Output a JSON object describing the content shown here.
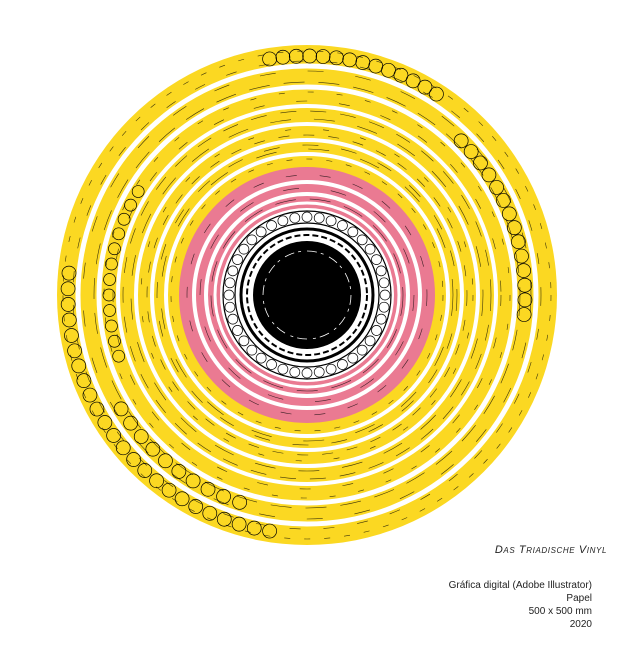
{
  "artwork": {
    "title": "Das Triadische Vinyl",
    "details": [
      "Gráfica digital (Adobe Illustrator)",
      "Papel",
      "500 x 500 mm",
      "2020"
    ]
  }
}
